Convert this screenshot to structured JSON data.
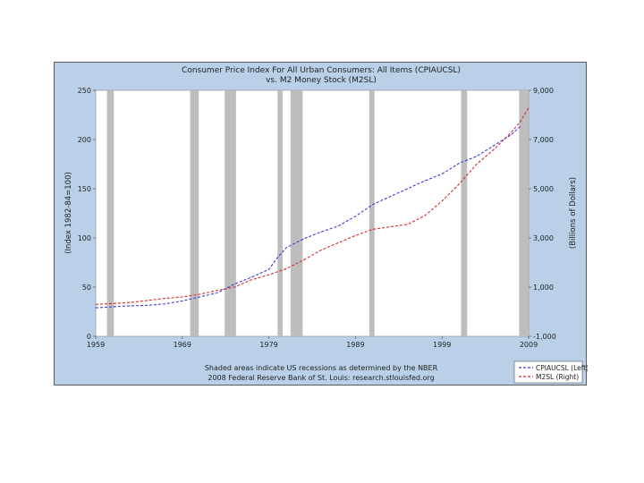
{
  "chart_data": {
    "type": "line",
    "title": "Consumer Price Index For All Urban Consumers: All Items (CPIAUCSL)",
    "subtitle": "vs. M2 Money Stock (M2SL)",
    "ylabel_left": "(Index 1982-84=100)",
    "ylabel_right": "(Billions of Dollars)",
    "x_range": [
      1959,
      2009
    ],
    "x_ticks": [
      "1959",
      "1969",
      "1979",
      "1989",
      "1999",
      "2009"
    ],
    "x_tick_values": [
      1959,
      1969,
      1979,
      1989,
      1999,
      2009
    ],
    "y_left_range": [
      0,
      250
    ],
    "y_left_ticks": [
      "0",
      "50",
      "100",
      "150",
      "200",
      "250"
    ],
    "y_left_tick_values": [
      0,
      50,
      100,
      150,
      200,
      250
    ],
    "y_right_range": [
      -1000,
      9000
    ],
    "y_right_ticks": [
      "-1,000",
      "1,000",
      "3,000",
      "5,000",
      "7,000",
      "9,000"
    ],
    "y_right_tick_values": [
      -1000,
      1000,
      3000,
      5000,
      7000,
      9000
    ],
    "grid": false,
    "legend_position": "bottom-right",
    "recessions": [
      [
        1960.3,
        1961.1
      ],
      [
        1969.9,
        1970.9
      ],
      [
        1973.9,
        1975.2
      ],
      [
        1980.0,
        1980.6
      ],
      [
        1981.5,
        1982.9
      ],
      [
        1990.6,
        1991.2
      ],
      [
        2001.2,
        2001.9
      ],
      [
        2007.9,
        2009.5
      ]
    ],
    "series": [
      {
        "name": "CPIAUCSL (Left)",
        "axis": "left",
        "color": "#3b3bd6",
        "dash": "3,2",
        "x": [
          1959,
          1961,
          1963,
          1965,
          1967,
          1969,
          1971,
          1973,
          1975,
          1977,
          1979,
          1980,
          1981,
          1983,
          1985,
          1987,
          1989,
          1991,
          1993,
          1995,
          1997,
          1999,
          2001,
          2003,
          2005,
          2007,
          2008
        ],
        "values": [
          29,
          30,
          31,
          31.5,
          33,
          36,
          40,
          44,
          53,
          60,
          68,
          80,
          90,
          99,
          106,
          112,
          122,
          134,
          142,
          150,
          158,
          165,
          176,
          183,
          194,
          205,
          213
        ]
      },
      {
        "name": "M2SL (Right)",
        "axis": "right",
        "color": "#d62b2b",
        "dash": "3,2",
        "x": [
          1959,
          1961,
          1963,
          1965,
          1967,
          1969,
          1971,
          1973,
          1975,
          1977,
          1979,
          1981,
          1983,
          1985,
          1987,
          1989,
          1991,
          1993,
          1995,
          1997,
          1999,
          2001,
          2003,
          2005,
          2007,
          2008,
          2009
        ],
        "values": [
          300,
          330,
          380,
          460,
          540,
          600,
          710,
          860,
          1000,
          1300,
          1500,
          1750,
          2100,
          2500,
          2800,
          3100,
          3350,
          3450,
          3550,
          3900,
          4500,
          5200,
          6000,
          6600,
          7300,
          7700,
          8300
        ]
      }
    ]
  },
  "footer": {
    "line1": "Shaded areas indicate US recessions as determined by the NBER",
    "line2": "2008 Federal Reserve Bank of St. Louis: research.stlouisfed.org"
  }
}
